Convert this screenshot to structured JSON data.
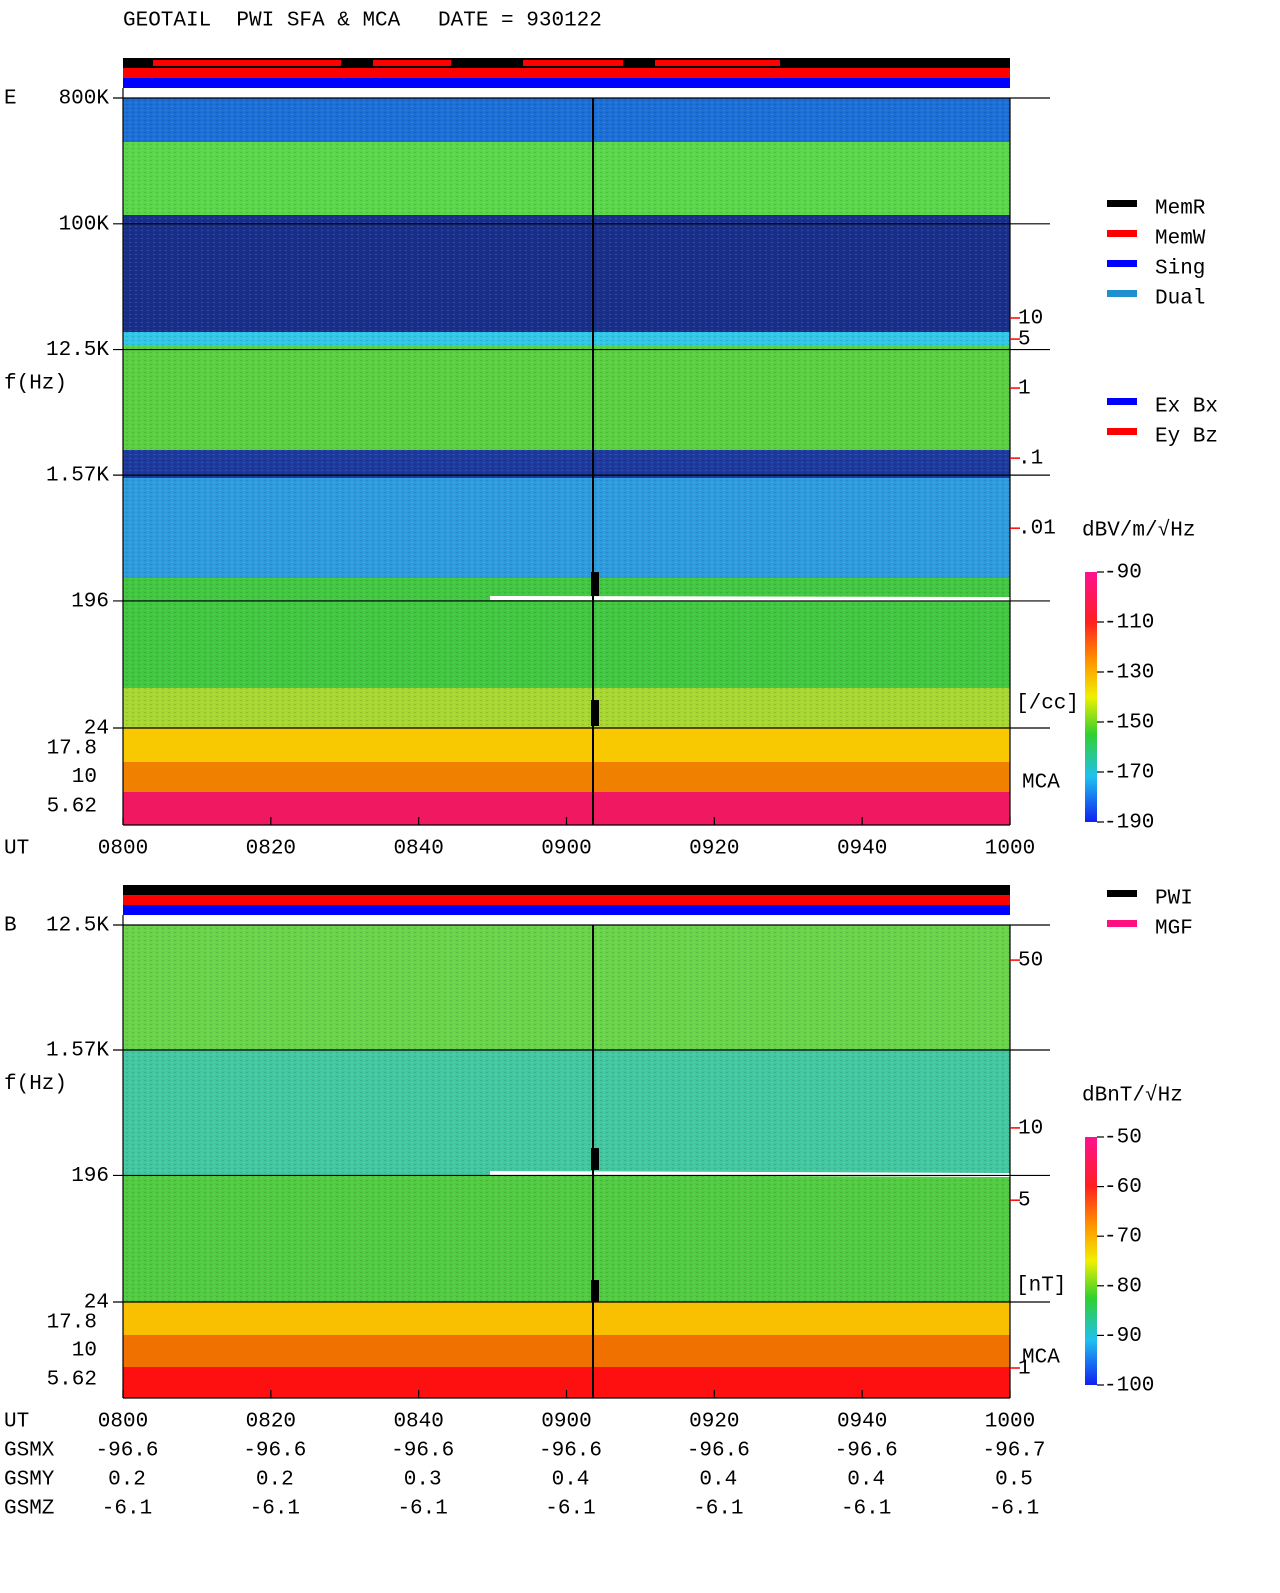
{
  "chart_data": [
    {
      "type": "spectrogram",
      "title": "GEOTAIL  PWI SFA & MCA   DATE = 930122",
      "panel_label": "E",
      "y_label": "f(Hz)",
      "x_label": "UT",
      "log_y": true,
      "categories": [
        "0800",
        "0820",
        "0840",
        "0900",
        "0920",
        "0940",
        "1000"
      ],
      "ylim": [
        24,
        800000
      ],
      "yticks": [
        {
          "value": 800000,
          "label": "800K"
        },
        {
          "value": 100000,
          "label": "100K"
        },
        {
          "value": 12500,
          "label": "12.5K"
        },
        {
          "value": 1570,
          "label": "1.57K"
        },
        196,
        24
      ],
      "mca_label": "MCA",
      "mca_channels": [
        "17.8",
        "10",
        "5.62"
      ],
      "y2_label": "[/cc]",
      "y2_color": "#ff0000",
      "y2lim": [
        5.8e-07,
        13800
      ],
      "y2ticks": [
        10,
        5,
        1,
        {
          "value": 0.1,
          "label": ".1"
        },
        {
          "value": 0.01,
          "label": ".01"
        }
      ],
      "colorbar": {
        "label": "dBV/m/√Hz",
        "lim": [
          -190,
          -90
        ],
        "ticks": [
          -90,
          -110,
          -130,
          -150,
          -170,
          -190
        ]
      },
      "legend": [
        {
          "name": "MemR",
          "color": "#000000"
        },
        {
          "name": "MemW",
          "color": "#ff0000"
        },
        {
          "name": "Sing",
          "color": "#0000ff"
        },
        {
          "name": "Dual",
          "color": "#1e90d0"
        }
      ],
      "legend2": [
        {
          "name": "Ex Bx",
          "color": "#0000ff"
        },
        {
          "name": "Ey Bz",
          "color": "#ff0000"
        }
      ]
    },
    {
      "type": "spectrogram",
      "panel_label": "B",
      "y_label": "f(Hz)",
      "x_label": "UT",
      "log_y": true,
      "categories": [
        "0800",
        "0820",
        "0840",
        "0900",
        "0920",
        "0940",
        "1000"
      ],
      "ylim": [
        24,
        12500
      ],
      "yticks": [
        {
          "value": 12500,
          "label": "12.5K"
        },
        {
          "value": 1570,
          "label": "1.57K"
        },
        196,
        24
      ],
      "mca_label": "MCA",
      "mca_channels": [
        "17.8",
        "10",
        "5.62"
      ],
      "y2_label": "[nT]",
      "y2_color": "#ff0000",
      "y2lim": [
        0.75,
        70
      ],
      "y2ticks": [
        50,
        10,
        5,
        1
      ],
      "colorbar": {
        "label": "dBnT/√Hz",
        "lim": [
          -100,
          -50
        ],
        "ticks": [
          -50,
          -60,
          -70,
          -80,
          -90,
          -100
        ]
      },
      "legend": [
        {
          "name": "PWI",
          "color": "#000000"
        },
        {
          "name": "MGF",
          "color": "#ff1080"
        }
      ],
      "orbit": [
        {
          "name": "GSMX",
          "values": [
            -96.6,
            -96.6,
            -96.6,
            -96.6,
            -96.6,
            -96.6,
            -96.7
          ]
        },
        {
          "name": "GSMY",
          "values": [
            0.2,
            0.2,
            0.3,
            0.4,
            0.4,
            0.4,
            0.5
          ]
        },
        {
          "name": "GSMZ",
          "values": [
            -6.1,
            -6.1,
            -6.1,
            -6.1,
            -6.1,
            -6.1,
            -6.1
          ]
        }
      ]
    }
  ]
}
